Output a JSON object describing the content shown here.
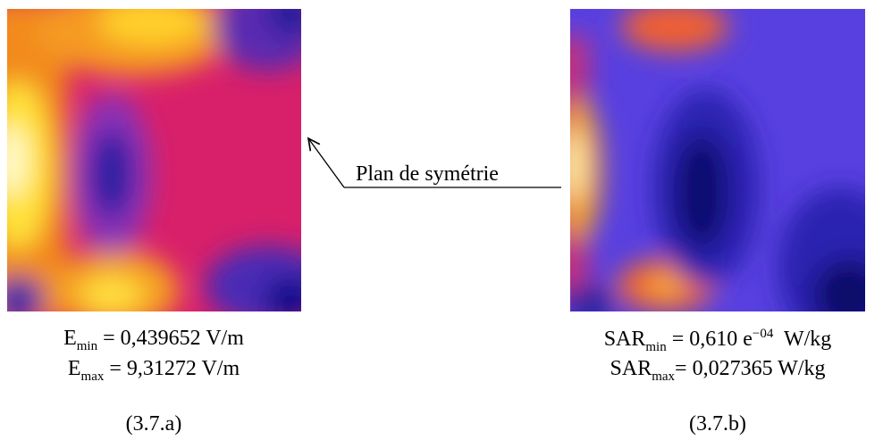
{
  "annotation": "Plan de symétrie",
  "panels": [
    {
      "lines": [
        {
          "symbol": "E",
          "subscript": "min",
          "text": " = 0,439652 V/m"
        },
        {
          "symbol": "E",
          "subscript": "max",
          "text": " = 9,31272 V/m"
        }
      ],
      "label": "(3.7.a)"
    },
    {
      "lines": [
        {
          "symbol": "SAR",
          "subscript": "min",
          "text": " = 0,610 e",
          "superscript": "−04",
          "unit": "  W/kg"
        },
        {
          "symbol": "SAR",
          "subscript": "max",
          "text": "= 0,027365 W/kg"
        }
      ],
      "label": "(3.7.b)"
    }
  ]
}
